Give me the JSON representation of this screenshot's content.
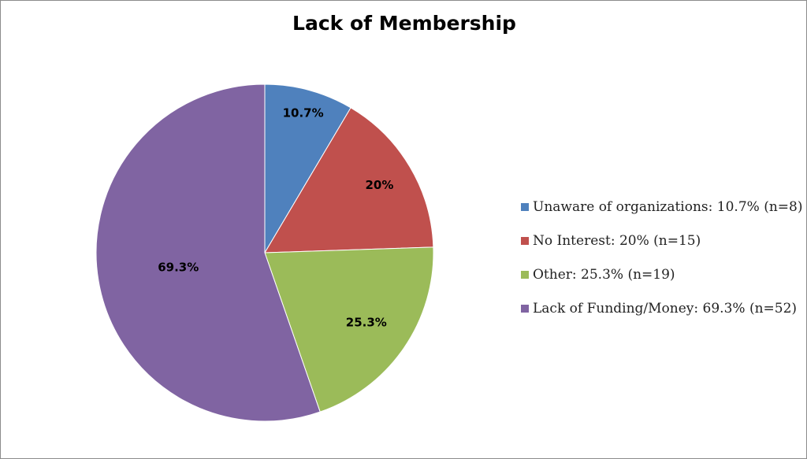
{
  "chart_data": {
    "type": "pie",
    "title": "Lack of Membership",
    "slices": [
      {
        "label": "Unaware of organizations: 10.7% (n=8)",
        "n": 8,
        "data_label": "10.7%",
        "color": "#4f81bd"
      },
      {
        "label": "No Interest: 20% (n=15)",
        "n": 15,
        "data_label": "20%",
        "color": "#c0504d"
      },
      {
        "label": "Other: 25.3% (n=19)",
        "n": 19,
        "data_label": "25.3%",
        "color": "#9bbb59"
      },
      {
        "label": "Lack of Funding/Money: 69.3% (n=52)",
        "n": 52,
        "data_label": "69.3%",
        "color": "#8064a2"
      }
    ],
    "start_angle": "12 o'clock, clockwise",
    "legend_position": "right"
  }
}
